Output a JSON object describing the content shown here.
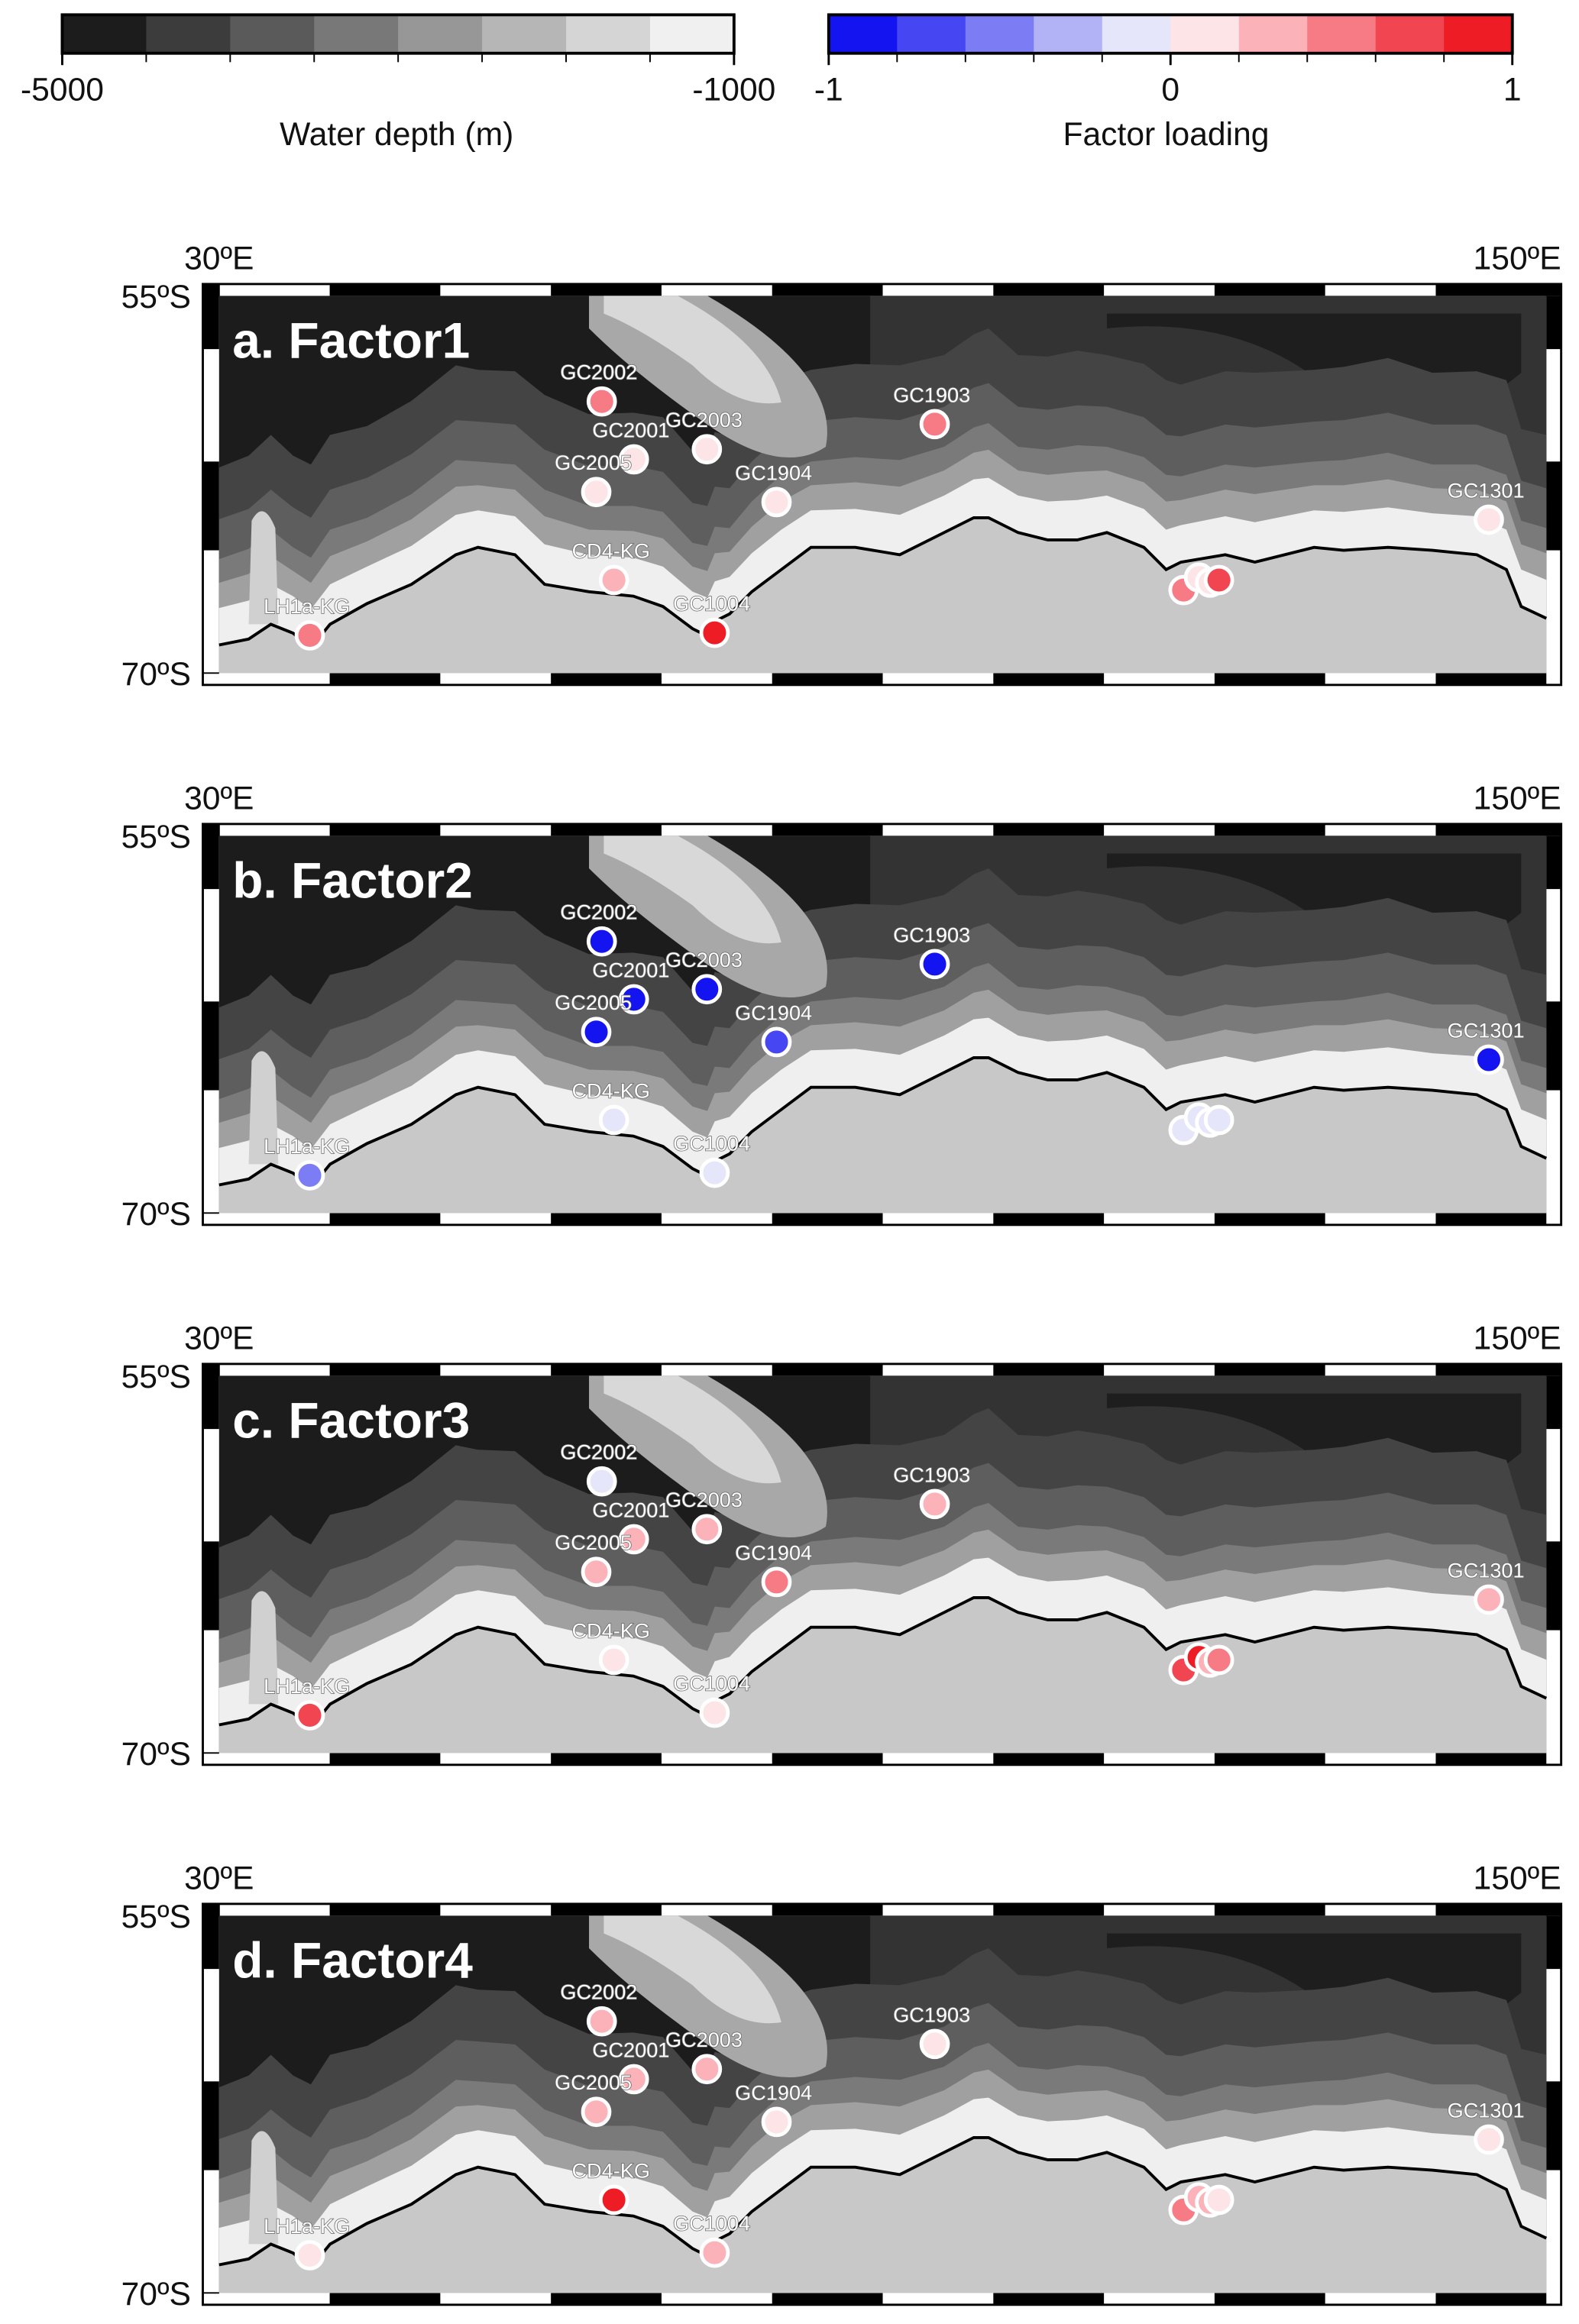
{
  "depth_colorbar": {
    "title": "Water depth (m)",
    "xlim": [
      -5000,
      -1000
    ],
    "xticks": [
      -5000,
      -1000
    ],
    "colors": [
      "#1c1c1c",
      "#3c3c3c",
      "#5a5a5a",
      "#787878",
      "#979797",
      "#b6b6b6",
      "#d5d5d5",
      "#f0f0f0"
    ]
  },
  "factor_colorbar": {
    "title": "Factor loading",
    "xlim": [
      -1,
      1
    ],
    "xticks": [
      -1,
      0,
      1
    ],
    "colors": [
      "#1414f0",
      "#4646f2",
      "#7c7cf4",
      "#b2b2f6",
      "#e6e6fa",
      "#fde4e6",
      "#fbb2b8",
      "#f67b84",
      "#f14652",
      "#ee1c24"
    ]
  },
  "map_axes": {
    "xlim": [
      30,
      150
    ],
    "ylim": [
      55,
      70
    ],
    "xticks": [
      {
        "value": 30,
        "label": "30ºE"
      },
      {
        "value": 150,
        "label": "150ºE"
      }
    ],
    "yticks": [
      {
        "value": 55,
        "label": "55ºS"
      },
      {
        "value": 70,
        "label": "70ºS"
      }
    ]
  },
  "stations": [
    {
      "name": "GC2002",
      "lon": 64.6,
      "lat": 59.2
    },
    {
      "name": "GC2001",
      "lon": 67.5,
      "lat": 61.5
    },
    {
      "name": "GC2003",
      "lon": 74.1,
      "lat": 61.1
    },
    {
      "name": "GC2005",
      "lon": 64.1,
      "lat": 62.8
    },
    {
      "name": "GC1904",
      "lon": 80.4,
      "lat": 63.2
    },
    {
      "name": "GC1903",
      "lon": 94.7,
      "lat": 60.1
    },
    {
      "name": "GC1301",
      "lon": 144.8,
      "lat": 63.9
    },
    {
      "name": "CD4-KG",
      "lon": 65.7,
      "lat": 66.3
    },
    {
      "name": "GC1004",
      "lon": 74.8,
      "lat": 68.4
    },
    {
      "name": "LH1a-KG",
      "lon": 38.2,
      "lat": 68.5
    },
    {
      "name": null,
      "lon": 117.2,
      "lat": 66.7
    },
    {
      "name": null,
      "lon": 118.6,
      "lat": 66.2
    },
    {
      "name": null,
      "lon": 119.6,
      "lat": 66.4
    },
    {
      "name": null,
      "lon": 120.4,
      "lat": 66.3
    }
  ],
  "panels": [
    {
      "title": "a. Factor1",
      "values": [
        0.5,
        0.1,
        0.1,
        0.1,
        0.1,
        0.4,
        0.1,
        0.3,
        0.8,
        0.4,
        0.5,
        0.1,
        0.1,
        0.7
      ]
    },
    {
      "title": "b. Factor2",
      "values": [
        -0.9,
        -0.9,
        -0.9,
        -0.9,
        -0.7,
        -0.9,
        -0.8,
        -0.1,
        -0.1,
        -0.5,
        -0.1,
        -0.1,
        -0.1,
        -0.1
      ]
    },
    {
      "title": "c. Factor3",
      "values": [
        -0.2,
        0.2,
        0.3,
        0.3,
        0.4,
        0.2,
        0.3,
        0.1,
        0.1,
        0.6,
        0.6,
        0.9,
        0.2,
        0.5
      ]
    },
    {
      "title": "d. Factor4",
      "values": [
        0.2,
        0.2,
        0.2,
        0.2,
        0.1,
        0.1,
        0.1,
        0.9,
        0.3,
        0.1,
        0.5,
        0.3,
        0.2,
        0.1
      ]
    }
  ]
}
